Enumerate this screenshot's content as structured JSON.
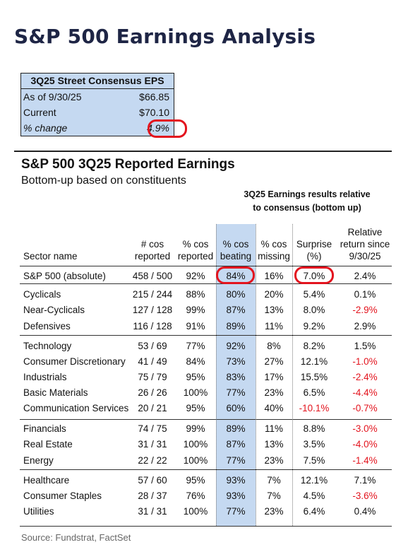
{
  "title": "S&P 500 Earnings Analysis",
  "consensus": {
    "header": "3Q25 Street Consensus EPS",
    "rows": [
      {
        "label": "As of 9/30/25",
        "value": "$66.85"
      },
      {
        "label": "Current",
        "value": "$70.10"
      },
      {
        "label": "% change",
        "value": "4.9%"
      }
    ]
  },
  "table": {
    "title": "S&P 500 3Q25 Reported Earnings",
    "subtitle": "Bottom-up based on constituents",
    "group_header_line1": "3Q25 Earnings results relative",
    "group_header_line2": "to consensus (bottom up)",
    "columns": {
      "sector": "Sector name",
      "reported_l1": "# cos",
      "reported_l2": "reported",
      "pct_reported_l1": "% cos",
      "pct_reported_l2": "reported",
      "beating_l1": "% cos",
      "beating_l2": "beating",
      "missing_l1": "% cos",
      "missing_l2": "missing",
      "surprise_l1": "Surprise",
      "surprise_l2": "(%)",
      "rel_l1": "Relative",
      "rel_l2": "return since",
      "rel_l3": "9/30/25"
    },
    "rows": [
      {
        "sector": "S&P 500 (absolute)",
        "reported": "458 / 500",
        "pct_reported": "92%",
        "beating": "84%",
        "missing": "16%",
        "surprise": "7.0%",
        "rel_return": "2.4%"
      },
      {
        "sector": "Cyclicals",
        "reported": "215 / 244",
        "pct_reported": "88%",
        "beating": "80%",
        "missing": "20%",
        "surprise": "5.4%",
        "rel_return": "0.1%"
      },
      {
        "sector": "Near-Cyclicals",
        "reported": "127 / 128",
        "pct_reported": "99%",
        "beating": "87%",
        "missing": "13%",
        "surprise": "8.0%",
        "rel_return": "-2.9%"
      },
      {
        "sector": "Defensives",
        "reported": "116 / 128",
        "pct_reported": "91%",
        "beating": "89%",
        "missing": "11%",
        "surprise": "9.2%",
        "rel_return": "2.9%"
      },
      {
        "sector": "Technology",
        "reported": "53 / 69",
        "pct_reported": "77%",
        "beating": "92%",
        "missing": "8%",
        "surprise": "8.2%",
        "rel_return": "1.5%"
      },
      {
        "sector": "Consumer Discretionary",
        "reported": "41 / 49",
        "pct_reported": "84%",
        "beating": "73%",
        "missing": "27%",
        "surprise": "12.1%",
        "rel_return": "-1.0%"
      },
      {
        "sector": "Industrials",
        "reported": "75 / 79",
        "pct_reported": "95%",
        "beating": "83%",
        "missing": "17%",
        "surprise": "15.5%",
        "rel_return": "-2.4%"
      },
      {
        "sector": "Basic Materials",
        "reported": "26 / 26",
        "pct_reported": "100%",
        "beating": "77%",
        "missing": "23%",
        "surprise": "6.5%",
        "rel_return": "-4.4%"
      },
      {
        "sector": "Communication Services",
        "reported": "20 / 21",
        "pct_reported": "95%",
        "beating": "60%",
        "missing": "40%",
        "surprise": "-10.1%",
        "rel_return": "-0.7%"
      },
      {
        "sector": "Financials",
        "reported": "74 / 75",
        "pct_reported": "99%",
        "beating": "89%",
        "missing": "11%",
        "surprise": "8.8%",
        "rel_return": "-3.0%"
      },
      {
        "sector": "Real Estate",
        "reported": "31 / 31",
        "pct_reported": "100%",
        "beating": "87%",
        "missing": "13%",
        "surprise": "3.5%",
        "rel_return": "-4.0%"
      },
      {
        "sector": "Energy",
        "reported": "22 / 22",
        "pct_reported": "100%",
        "beating": "77%",
        "missing": "23%",
        "surprise": "7.5%",
        "rel_return": "-1.4%"
      },
      {
        "sector": "Healthcare",
        "reported": "57 / 60",
        "pct_reported": "95%",
        "beating": "93%",
        "missing": "7%",
        "surprise": "12.1%",
        "rel_return": "7.1%"
      },
      {
        "sector": "Consumer Staples",
        "reported": "28 / 37",
        "pct_reported": "76%",
        "beating": "93%",
        "missing": "7%",
        "surprise": "4.5%",
        "rel_return": "-3.6%"
      },
      {
        "sector": "Utilities",
        "reported": "31 / 31",
        "pct_reported": "100%",
        "beating": "77%",
        "missing": "23%",
        "surprise": "6.4%",
        "rel_return": "0.4%"
      }
    ]
  },
  "source": "Source: Fundstrat, FactSet",
  "colors": {
    "highlight_blue": "#c5d9f1",
    "negative_red": "#e3141e",
    "oval_red": "#e3141e",
    "title_navy": "#1e2545"
  }
}
